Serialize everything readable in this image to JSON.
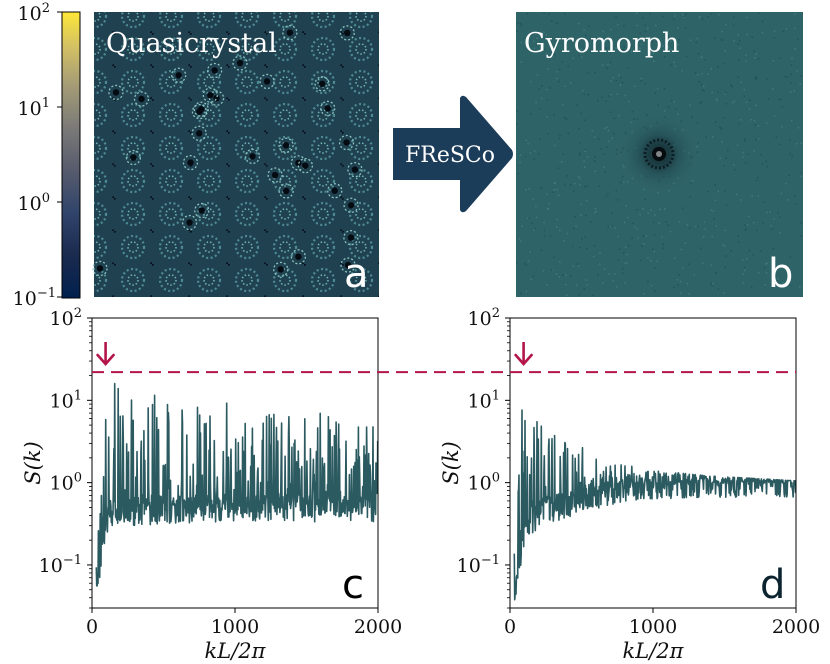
{
  "colors": {
    "curve": "#2c5a61",
    "marker": "#b3154a",
    "arrow_fill": "#1b3d5a",
    "gyro_bg": "#2e6368",
    "qc_bg": "#1f4150",
    "qc_dot": "#5fa4a8"
  },
  "colorbar": {
    "ticks": [
      {
        "label": "10",
        "exp": "2"
      },
      {
        "label": "10",
        "exp": "1"
      },
      {
        "label": "10",
        "exp": "0"
      },
      {
        "label": "10",
        "exp": "−1"
      }
    ],
    "colormap": "cividis"
  },
  "panel_a": {
    "title": "Quasicrystal",
    "letter": "a"
  },
  "panel_b": {
    "title": "Gyromorph",
    "letter": "b"
  },
  "arrow": {
    "label": "FReSCo",
    "icon": "right-arrow-icon"
  },
  "panel_c": {
    "letter": "c"
  },
  "panel_d": {
    "letter": "d"
  },
  "marker_arrow_icon": "down-arrow-icon",
  "chart_data": [
    {
      "type": "line",
      "panel": "c",
      "xlabel": "kL/2π",
      "ylabel": "S(k)",
      "xlim": [
        0,
        2000
      ],
      "ylim": [
        0.03,
        100
      ],
      "yscale": "log",
      "xticks": [
        "0",
        "1000",
        "2000"
      ],
      "yticks": [
        {
          "label": "10",
          "exp": "2"
        },
        {
          "label": "10",
          "exp": "1"
        },
        {
          "label": "10",
          "exp": "0"
        },
        {
          "label": "10",
          "exp": "−1"
        }
      ],
      "reference_line": {
        "y": 22,
        "style": "dashed"
      },
      "marker_x": 95,
      "series": [
        {
          "x": [
            30,
            50,
            70,
            90,
            100,
            120,
            150,
            200,
            250,
            300,
            400,
            500,
            600,
            700,
            800,
            900,
            1000,
            1100,
            1200,
            1300,
            1400,
            1500,
            1600,
            1700,
            1800,
            1900,
            2000
          ],
          "baseline": [
            0.05,
            0.09,
            0.14,
            0.3,
            0.35,
            0.4,
            0.42,
            0.43,
            0.44,
            0.45,
            0.46,
            0.47,
            0.48,
            0.48,
            0.49,
            0.5,
            0.5,
            0.5,
            0.5,
            0.5,
            0.5,
            0.5,
            0.5,
            0.5,
            0.5,
            0.5,
            0.5
          ],
          "peak_max": [
            0.3,
            0.6,
            1.5,
            16,
            15,
            17,
            18,
            16,
            14,
            15,
            14,
            13,
            12,
            11,
            10,
            10,
            10,
            9,
            9,
            8,
            8,
            8,
            7,
            7,
            6,
            6,
            5
          ]
        }
      ]
    },
    {
      "type": "line",
      "panel": "d",
      "xlabel": "kL/2π",
      "ylabel": "S(k)",
      "xlim": [
        0,
        2000
      ],
      "ylim": [
        0.03,
        100
      ],
      "yscale": "log",
      "xticks": [
        "0",
        "1000",
        "2000"
      ],
      "yticks": [
        {
          "label": "10",
          "exp": "2"
        },
        {
          "label": "10",
          "exp": "1"
        },
        {
          "label": "10",
          "exp": "0"
        },
        {
          "label": "10",
          "exp": "−1"
        }
      ],
      "reference_line": {
        "y": 22,
        "style": "dashed"
      },
      "marker_x": 95,
      "series": [
        {
          "x": [
            30,
            50,
            70,
            90,
            100,
            120,
            150,
            200,
            250,
            300,
            400,
            500,
            600,
            700,
            800,
            900,
            1000,
            1200,
            1400,
            1600,
            1800,
            2000
          ],
          "baseline": [
            0.04,
            0.08,
            0.12,
            0.2,
            0.25,
            0.3,
            0.35,
            0.4,
            0.45,
            0.5,
            0.55,
            0.62,
            0.7,
            0.78,
            0.85,
            0.9,
            0.93,
            0.95,
            0.97,
            0.98,
            0.99,
            1.0
          ],
          "peak_max": [
            0.2,
            0.6,
            2.0,
            22,
            12,
            10,
            8,
            6,
            5,
            4.2,
            3.5,
            3.0,
            2.4,
            2.0,
            1.7,
            1.5,
            1.4,
            1.3,
            1.2,
            1.15,
            1.1,
            1.05
          ]
        }
      ]
    }
  ]
}
